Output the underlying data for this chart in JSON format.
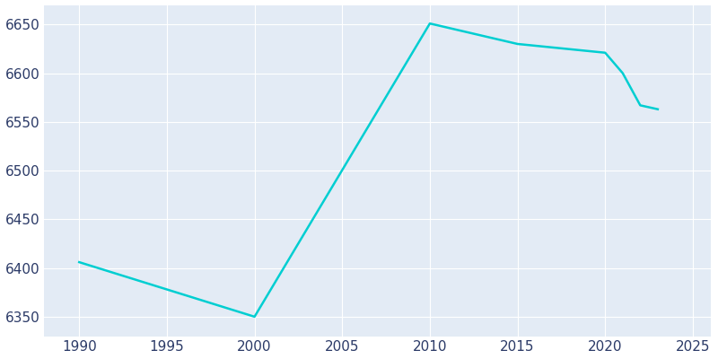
{
  "years": [
    1990,
    2000,
    2010,
    2015,
    2020,
    2021,
    2022,
    2023
  ],
  "population": [
    6406,
    6350,
    6651,
    6630,
    6621,
    6600,
    6567,
    6563
  ],
  "line_color": "#00CED1",
  "bg_color": "#FFFFFF",
  "axes_bg_color": "#E3EBF5",
  "tick_color": "#2B3A67",
  "grid_color": "#FFFFFF",
  "xlim": [
    1988,
    2026
  ],
  "ylim": [
    6330,
    6670
  ],
  "xticks": [
    1990,
    1995,
    2000,
    2005,
    2010,
    2015,
    2020,
    2025
  ],
  "yticks": [
    6350,
    6400,
    6450,
    6500,
    6550,
    6600,
    6650
  ],
  "linewidth": 1.8,
  "tick_labelsize": 11
}
